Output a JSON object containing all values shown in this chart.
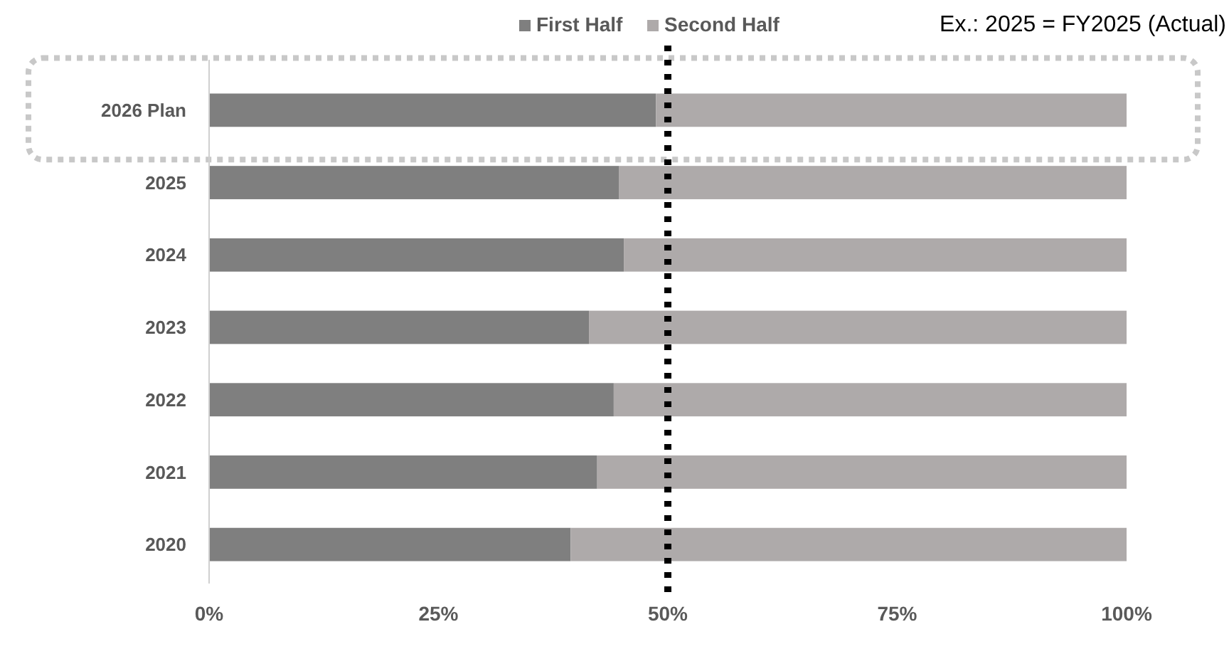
{
  "chart_data": {
    "type": "bar",
    "orientation": "horizontal",
    "stacked": true,
    "categories": [
      "2026 Plan",
      "2025",
      "2024",
      "2023",
      "2022",
      "2021",
      "2020"
    ],
    "series": [
      {
        "name": "First Half",
        "color": "#7f7f7f",
        "values": [
          48.7,
          44.7,
          45.2,
          41.4,
          44.1,
          42.3,
          39.4
        ]
      },
      {
        "name": "Second Half",
        "color": "#aeaaaa",
        "values": [
          51.3,
          55.3,
          54.8,
          58.6,
          55.9,
          57.7,
          60.6
        ]
      }
    ],
    "xlim": [
      0,
      100
    ],
    "xticks": [
      {
        "value": 0,
        "label": "0%"
      },
      {
        "value": 25,
        "label": "25%"
      },
      {
        "value": 50,
        "label": "50%"
      },
      {
        "value": 75,
        "label": "75%"
      },
      {
        "value": 100,
        "label": "100%"
      }
    ],
    "ref_lines": [
      {
        "axis": "x",
        "value": 50,
        "color": "#000000",
        "line_style": "dotted"
      }
    ],
    "legend": "top",
    "annotations": [
      "Ex.: 2025 = FY2025 (Actual)"
    ]
  }
}
